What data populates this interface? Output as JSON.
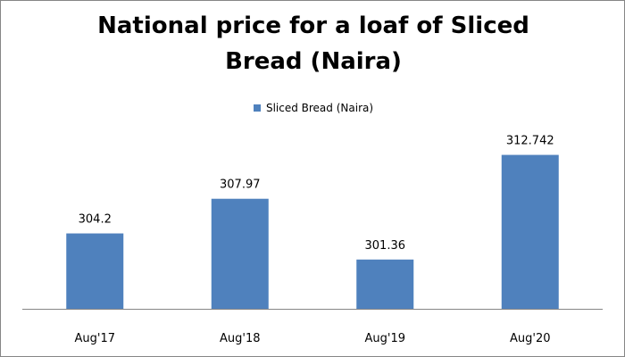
{
  "chart_data": {
    "type": "bar",
    "title": "National price for a loaf of Sliced Bread (Naira)",
    "title_lines": [
      "National price for a loaf of Sliced",
      "Bread (Naira)"
    ],
    "categories": [
      "Aug'17",
      "Aug'18",
      "Aug'19",
      "Aug'20"
    ],
    "series": [
      {
        "name": "Sliced Bread (Naira)",
        "values": [
          304.2,
          307.97,
          301.36,
          312.742
        ],
        "value_labels": [
          "304.2",
          "307.97",
          "301.36",
          "312.742"
        ],
        "color": "#4F81BD"
      }
    ],
    "xlabel": "",
    "ylabel": "",
    "ylim": [
      296,
      316
    ],
    "grid": false,
    "y_axis_visible": false,
    "legend_position": "top-center",
    "data_labels": true
  }
}
